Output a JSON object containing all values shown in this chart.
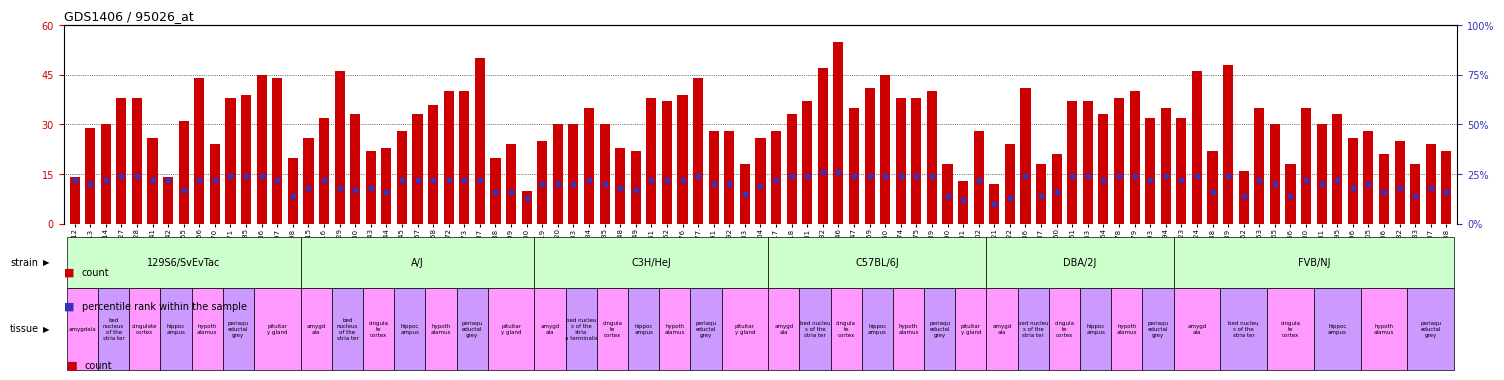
{
  "title": "GDS1406 / 95026_at",
  "samples": [
    "GSM74912",
    "GSM74913",
    "GSM74914",
    "GSM74927",
    "GSM74928",
    "GSM74941",
    "GSM74942",
    "GSM74955",
    "GSM74956",
    "GSM74970",
    "GSM74971",
    "GSM74985",
    "GSM74986",
    "GSM74997",
    "GSM74998",
    "GSM74915",
    "GSM74916",
    "GSM74929",
    "GSM74930",
    "GSM74943",
    "GSM74944",
    "GSM74945",
    "GSM74957",
    "GSM74958",
    "GSM74972",
    "GSM74973",
    "GSM74987",
    "GSM74988",
    "GSM74999",
    "GSM75000",
    "GSM74919",
    "GSM74920",
    "GSM74933",
    "GSM74934",
    "GSM74935",
    "GSM74948",
    "GSM74949",
    "GSM74961",
    "GSM74962",
    "GSM74976",
    "GSM74977",
    "GSM74991",
    "GSM74992",
    "GSM75003",
    "GSM75004",
    "GSM74917",
    "GSM74918",
    "GSM74931",
    "GSM74932",
    "GSM74946",
    "GSM74947",
    "GSM74959",
    "GSM74960",
    "GSM74974",
    "GSM74975",
    "GSM74989",
    "GSM74990",
    "GSM75001",
    "GSM75002",
    "GSM74921",
    "GSM74922",
    "GSM74936",
    "GSM74937",
    "GSM74950",
    "GSM74951",
    "GSM74963",
    "GSM74964",
    "GSM74978",
    "GSM74979",
    "GSM74993",
    "GSM74994",
    "GSM74923",
    "GSM74924",
    "GSM74938",
    "GSM74939",
    "GSM74952",
    "GSM74953",
    "GSM74965",
    "GSM74966",
    "GSM74980",
    "GSM74981",
    "GSM74995",
    "GSM74996",
    "GSM75005",
    "GSM75006",
    "GSM74482",
    "GSM74483",
    "GSM75007",
    "GSM75008"
  ],
  "counts": [
    14,
    29,
    30,
    38,
    38,
    26,
    14,
    31,
    44,
    24,
    38,
    39,
    45,
    44,
    20,
    26,
    32,
    46,
    33,
    22,
    23,
    28,
    33,
    36,
    40,
    40,
    50,
    20,
    24,
    10,
    25,
    30,
    30,
    35,
    30,
    23,
    22,
    38,
    37,
    39,
    44,
    28,
    28,
    18,
    26,
    28,
    33,
    37,
    47,
    55,
    35,
    41,
    45,
    38,
    38,
    40,
    18,
    13,
    28,
    12,
    24,
    41,
    18,
    21,
    37,
    37,
    33,
    38,
    40,
    32,
    35,
    32,
    46,
    22,
    48,
    16,
    35,
    30,
    18,
    35,
    30,
    33,
    26,
    28,
    21,
    25,
    18,
    24,
    22
  ],
  "percentiles": [
    22,
    20,
    22,
    24,
    24,
    22,
    22,
    17,
    22,
    22,
    24,
    24,
    24,
    22,
    14,
    18,
    22,
    18,
    17,
    18,
    16,
    22,
    22,
    22,
    22,
    22,
    22,
    16,
    16,
    13,
    20,
    20,
    20,
    22,
    20,
    18,
    17,
    22,
    22,
    22,
    24,
    20,
    20,
    15,
    19,
    22,
    24,
    24,
    26,
    26,
    24,
    24,
    24,
    24,
    24,
    24,
    14,
    12,
    22,
    10,
    13,
    24,
    14,
    16,
    24,
    24,
    22,
    24,
    24,
    22,
    24,
    22,
    24,
    16,
    24,
    14,
    22,
    20,
    14,
    22,
    20,
    22,
    18,
    20,
    16,
    18,
    14,
    18,
    16
  ],
  "strains": [
    {
      "label": "129S6/SvEvTac",
      "n_samples": 15
    },
    {
      "label": "A/J",
      "n_samples": 15
    },
    {
      "label": "C3H/HeJ",
      "n_samples": 15
    },
    {
      "label": "C57BL/6J",
      "n_samples": 14
    },
    {
      "label": "DBA/2J",
      "n_samples": 12
    },
    {
      "label": "FVB/NJ",
      "n_samples": 18
    }
  ],
  "tissues": [
    [
      [
        "amygdala",
        2
      ],
      [
        "bed\nnucleus\nof the\nstria ter",
        2
      ],
      [
        "cingulate\ncortex",
        2
      ],
      [
        "hippoc\nampus",
        2
      ],
      [
        "hypoth\nalamus",
        2
      ],
      [
        "periaqu\neductal\ngrey",
        2
      ],
      [
        "pituitar\ny gland",
        3
      ]
    ],
    [
      [
        "amygd\nala",
        2
      ],
      [
        "bed\nnucleus\nof the\nstria ter",
        2
      ],
      [
        "cingula\nte\ncortex",
        2
      ],
      [
        "hippoc\nampus",
        2
      ],
      [
        "hypoth\nalamus",
        2
      ],
      [
        "periaqu\neductal\ngrey",
        2
      ],
      [
        "pituitar\ny gland",
        3
      ]
    ],
    [
      [
        "amygd\nala",
        2
      ],
      [
        "bed nucleu\ns of the\nstria\na terminalis",
        2
      ],
      [
        "cingula\nte\ncortex",
        2
      ],
      [
        "hippoc\nampus",
        2
      ],
      [
        "hypoth\nalamus",
        2
      ],
      [
        "periaqu\neductal\ngrey",
        2
      ],
      [
        "pituitar\ny gland",
        3
      ]
    ],
    [
      [
        "amygd\nala",
        2
      ],
      [
        "bed nucleu\ns of the\nstria ter",
        2
      ],
      [
        "cingula\nte\ncortex",
        2
      ],
      [
        "hippoc\nampus",
        2
      ],
      [
        "hypoth\nalamus",
        2
      ],
      [
        "periaqu\neductal\ngrey",
        2
      ],
      [
        "pituitar\ny gland",
        2
      ]
    ],
    [
      [
        "amygd\nala",
        2
      ],
      [
        "bed nucleu\ns of the\nstria ter",
        2
      ],
      [
        "cingula\nte\ncortex",
        2
      ],
      [
        "hippoc\nampus",
        2
      ],
      [
        "hypoth\nalamus",
        2
      ],
      [
        "periaqu\neductal\ngrey",
        2
      ]
    ],
    [
      [
        "amygd\nala",
        3
      ],
      [
        "bed nucleu\ns of the\nstria ter",
        3
      ],
      [
        "cingula\nte\ncortex",
        3
      ],
      [
        "hippoc\nampus",
        3
      ],
      [
        "hypoth\nalamus",
        3
      ],
      [
        "periaqu\neductal\ngrey",
        3
      ]
    ]
  ],
  "bar_color": "#cc0000",
  "dot_color": "#3333bb",
  "strain_color": "#ccffcc",
  "tissue_colors": [
    "#ff99ff",
    "#cc99ff"
  ],
  "ylim_left": [
    0,
    60
  ],
  "ylim_right": [
    0,
    100
  ],
  "yticks_left": [
    0,
    15,
    30,
    45,
    60
  ],
  "yticks_right": [
    0,
    25,
    50,
    75,
    100
  ]
}
